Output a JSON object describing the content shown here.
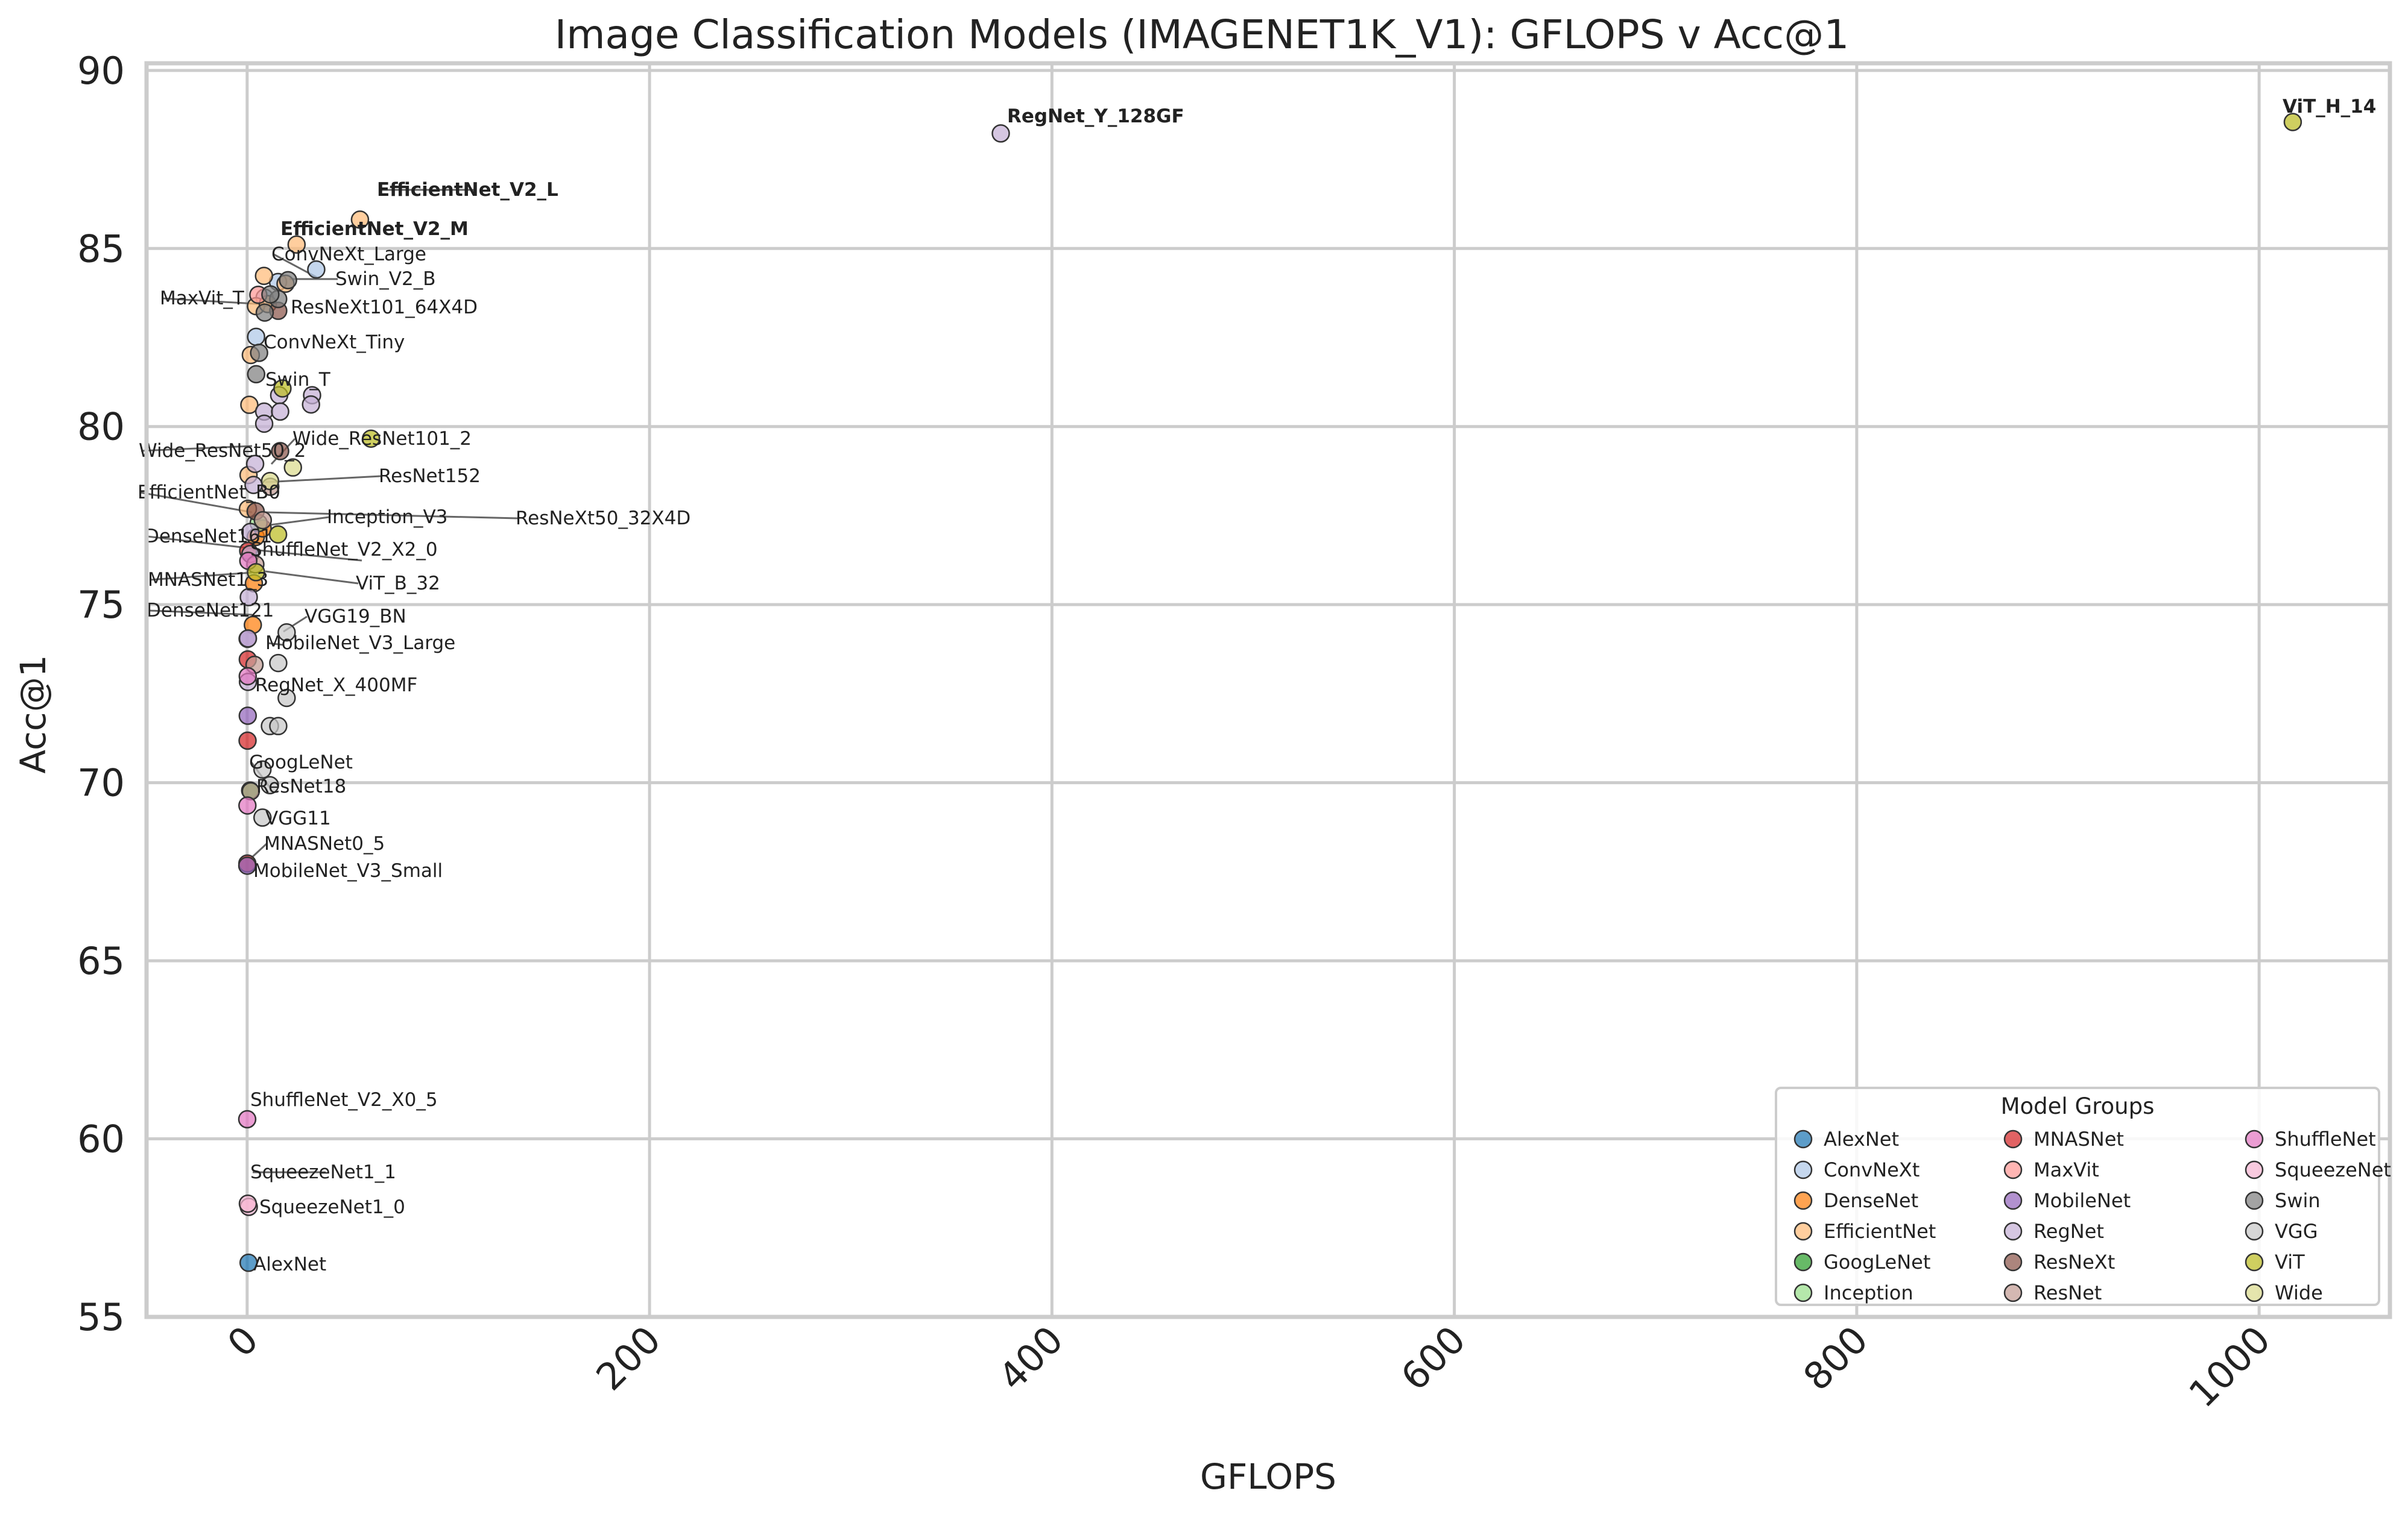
{
  "chart_data": {
    "type": "scatter",
    "title": "Image Classification Models (IMAGENET1K_V1): GFLOPS v Acc@1",
    "xlabel": "GFLOPS",
    "ylabel": "Acc@1",
    "xlim": [
      -50,
      1065
    ],
    "ylim": [
      55,
      90.2
    ],
    "xticks": [
      0,
      200,
      400,
      600,
      800,
      1000
    ],
    "yticks": [
      55,
      60,
      65,
      70,
      75,
      80,
      85,
      90
    ],
    "grid": true,
    "legend": {
      "title": "Model Groups",
      "placement": "lower-right",
      "columns": 3,
      "entries": [
        "AlexNet",
        "ConvNeXt",
        "DenseNet",
        "EfficientNet",
        "GoogLeNet",
        "Inception",
        "MNASNet",
        "MaxVit",
        "MobileNet",
        "RegNet",
        "ResNeXt",
        "ResNet",
        "ShuffleNet",
        "SqueezeNet",
        "Swin",
        "VGG",
        "ViT",
        "Wide"
      ]
    },
    "group_colors": {
      "AlexNet": "#1f77b4",
      "ConvNeXt": "#aec7e8",
      "DenseNet": "#ff7f0e",
      "EfficientNet": "#ffbb78",
      "GoogLeNet": "#2ca02c",
      "Inception": "#98df8a",
      "MNASNet": "#d62728",
      "MaxVit": "#ff9896",
      "MobileNet": "#9467bd",
      "RegNet": "#c5b0d5",
      "ResNeXt": "#8c564b",
      "ResNet": "#c49c94",
      "ShuffleNet": "#e377c2",
      "SqueezeNet": "#f7b6d2",
      "Swin": "#7f7f7f",
      "VGG": "#c7c7c7",
      "ViT": "#bcbd22",
      "Wide": "#dbdb8d"
    },
    "points": [
      {
        "group": "AlexNet",
        "x": 0.71,
        "y": 56.52
      },
      {
        "group": "ConvNeXt",
        "x": 34.36,
        "y": 84.41
      },
      {
        "group": "ConvNeXt",
        "x": 15.36,
        "y": 84.06
      },
      {
        "group": "ConvNeXt",
        "x": 8.68,
        "y": 83.62
      },
      {
        "group": "ConvNeXt",
        "x": 4.46,
        "y": 82.52
      },
      {
        "group": "DenseNet",
        "x": 2.83,
        "y": 74.43
      },
      {
        "group": "DenseNet",
        "x": 3.36,
        "y": 75.6
      },
      {
        "group": "DenseNet",
        "x": 4.29,
        "y": 76.9
      },
      {
        "group": "DenseNet",
        "x": 7.73,
        "y": 77.14
      },
      {
        "group": "EfficientNet",
        "x": 0.39,
        "y": 77.69
      },
      {
        "group": "EfficientNet",
        "x": 0.69,
        "y": 78.64
      },
      {
        "group": "EfficientNet",
        "x": 1.09,
        "y": 80.61
      },
      {
        "group": "EfficientNet",
        "x": 1.83,
        "y": 82.01
      },
      {
        "group": "EfficientNet",
        "x": 4.39,
        "y": 83.38
      },
      {
        "group": "EfficientNet",
        "x": 10.27,
        "y": 83.44
      },
      {
        "group": "EfficientNet",
        "x": 19.07,
        "y": 84.01
      },
      {
        "group": "EfficientNet",
        "x": 8.37,
        "y": 84.23
      },
      {
        "group": "EfficientNet",
        "x": 24.58,
        "y": 85.11
      },
      {
        "group": "EfficientNet",
        "x": 56.08,
        "y": 85.81
      },
      {
        "group": "GoogLeNet",
        "x": 1.5,
        "y": 69.78
      },
      {
        "group": "Inception",
        "x": 5.71,
        "y": 77.29
      },
      {
        "group": "MNASNet",
        "x": 0.1,
        "y": 67.73
      },
      {
        "group": "MNASNet",
        "x": 0.21,
        "y": 71.18
      },
      {
        "group": "MNASNet",
        "x": 0.31,
        "y": 73.46
      },
      {
        "group": "MNASNet",
        "x": 0.53,
        "y": 76.51
      },
      {
        "group": "MaxVit",
        "x": 5.56,
        "y": 83.7
      },
      {
        "group": "MobileNet",
        "x": 0.3,
        "y": 71.88
      },
      {
        "group": "MobileNet",
        "x": 0.06,
        "y": 67.67
      },
      {
        "group": "MobileNet",
        "x": 0.22,
        "y": 74.04
      },
      {
        "group": "RegNet",
        "x": 0.4,
        "y": 72.83
      },
      {
        "group": "RegNet",
        "x": 0.81,
        "y": 75.21
      },
      {
        "group": "RegNet",
        "x": 1.6,
        "y": 77.04
      },
      {
        "group": "RegNet",
        "x": 3.18,
        "y": 78.36
      },
      {
        "group": "RegNet",
        "x": 8.47,
        "y": 80.42
      },
      {
        "group": "RegNet",
        "x": 15.91,
        "y": 80.88
      },
      {
        "group": "RegNet",
        "x": 32.28,
        "y": 80.88
      },
      {
        "group": "RegNet",
        "x": 0.41,
        "y": 74.05
      },
      {
        "group": "RegNet",
        "x": 1.6,
        "y": 76.42
      },
      {
        "group": "RegNet",
        "x": 3.97,
        "y": 78.95
      },
      {
        "group": "RegNet",
        "x": 8.47,
        "y": 80.08
      },
      {
        "group": "RegNet",
        "x": 16.41,
        "y": 80.42
      },
      {
        "group": "RegNet",
        "x": 31.74,
        "y": 80.62
      },
      {
        "group": "RegNet",
        "x": 374.57,
        "y": 88.23
      },
      {
        "group": "ResNeXt",
        "x": 4.23,
        "y": 77.62
      },
      {
        "group": "ResNeXt",
        "x": 16.41,
        "y": 79.31
      },
      {
        "group": "ResNeXt",
        "x": 15.46,
        "y": 83.25
      },
      {
        "group": "ResNet",
        "x": 1.81,
        "y": 69.76
      },
      {
        "group": "ResNet",
        "x": 3.66,
        "y": 73.31
      },
      {
        "group": "ResNet",
        "x": 4.09,
        "y": 76.13
      },
      {
        "group": "ResNet",
        "x": 7.8,
        "y": 77.37
      },
      {
        "group": "ResNet",
        "x": 11.51,
        "y": 78.31
      },
      {
        "group": "ShuffleNet",
        "x": 0.04,
        "y": 60.55
      },
      {
        "group": "ShuffleNet",
        "x": 0.14,
        "y": 69.36
      },
      {
        "group": "ShuffleNet",
        "x": 0.3,
        "y": 72.99
      },
      {
        "group": "ShuffleNet",
        "x": 0.58,
        "y": 76.23
      },
      {
        "group": "SqueezeNet",
        "x": 0.82,
        "y": 58.09
      },
      {
        "group": "SqueezeNet",
        "x": 0.35,
        "y": 58.18
      },
      {
        "group": "Swin",
        "x": 4.49,
        "y": 81.47
      },
      {
        "group": "Swin",
        "x": 8.74,
        "y": 83.2
      },
      {
        "group": "Swin",
        "x": 15.43,
        "y": 83.58
      },
      {
        "group": "Swin",
        "x": 5.94,
        "y": 82.07
      },
      {
        "group": "Swin",
        "x": 11.55,
        "y": 83.71
      },
      {
        "group": "Swin",
        "x": 20.32,
        "y": 84.11
      },
      {
        "group": "VGG",
        "x": 7.61,
        "y": 69.02
      },
      {
        "group": "VGG",
        "x": 7.61,
        "y": 70.37
      },
      {
        "group": "VGG",
        "x": 11.31,
        "y": 69.93
      },
      {
        "group": "VGG",
        "x": 11.31,
        "y": 71.59
      },
      {
        "group": "VGG",
        "x": 15.47,
        "y": 71.59
      },
      {
        "group": "VGG",
        "x": 15.47,
        "y": 73.36
      },
      {
        "group": "VGG",
        "x": 19.63,
        "y": 72.38
      },
      {
        "group": "VGG",
        "x": 19.63,
        "y": 74.22
      },
      {
        "group": "ViT",
        "x": 17.56,
        "y": 81.07
      },
      {
        "group": "ViT",
        "x": 4.41,
        "y": 75.91
      },
      {
        "group": "ViT",
        "x": 61.55,
        "y": 79.66
      },
      {
        "group": "ViT",
        "x": 15.38,
        "y": 76.97
      },
      {
        "group": "ViT",
        "x": 1016.72,
        "y": 88.55
      },
      {
        "group": "Wide",
        "x": 11.4,
        "y": 78.47
      },
      {
        "group": "Wide",
        "x": 22.75,
        "y": 78.85
      }
    ],
    "annotations": [
      {
        "text": "RegNet_Y_128GF",
        "bold": true
      },
      {
        "text": "ViT_H_14",
        "bold": true
      },
      {
        "text": "EfficientNet_V2_L",
        "bold": true
      },
      {
        "text": "EfficientNet_V2_M",
        "bold": true
      },
      {
        "text": "ConvNeXt_Large",
        "bold": false
      },
      {
        "text": "Swin_V2_B",
        "bold": false
      },
      {
        "text": "MaxVit_T",
        "bold": false
      },
      {
        "text": "ResNeXt101_64X4D",
        "bold": false
      },
      {
        "text": "ConvNeXt_Tiny",
        "bold": false
      },
      {
        "text": "Swin_T",
        "bold": false
      },
      {
        "text": "Wide_ResNet101_2",
        "bold": false
      },
      {
        "text": "Wide_ResNet50_2",
        "bold": false
      },
      {
        "text": "ResNet152",
        "bold": false
      },
      {
        "text": "EfficientNet_B0",
        "bold": false
      },
      {
        "text": "Inception_V3",
        "bold": false
      },
      {
        "text": "ResNeXt50_32X4D",
        "bold": false
      },
      {
        "text": "DenseNet161",
        "bold": false
      },
      {
        "text": "ShuffleNet_V2_X2_0",
        "bold": false
      },
      {
        "text": "MNASNet1_3",
        "bold": false
      },
      {
        "text": "ViT_B_32",
        "bold": false
      },
      {
        "text": "DenseNet121",
        "bold": false
      },
      {
        "text": "VGG19_BN",
        "bold": false
      },
      {
        "text": "MobileNet_V3_Large",
        "bold": false
      },
      {
        "text": "RegNet_X_400MF",
        "bold": false
      },
      {
        "text": "GoogLeNet",
        "bold": false
      },
      {
        "text": "ResNet18",
        "bold": false
      },
      {
        "text": "VGG11",
        "bold": false
      },
      {
        "text": "MNASNet0_5",
        "bold": false
      },
      {
        "text": "MobileNet_V3_Small",
        "bold": false
      },
      {
        "text": "ShuffleNet_V2_X0_5",
        "bold": false
      },
      {
        "text": "SqueezeNet1_1",
        "bold": false
      },
      {
        "text": "SqueezeNet1_0",
        "bold": false
      },
      {
        "text": "AlexNet",
        "bold": false
      }
    ]
  }
}
